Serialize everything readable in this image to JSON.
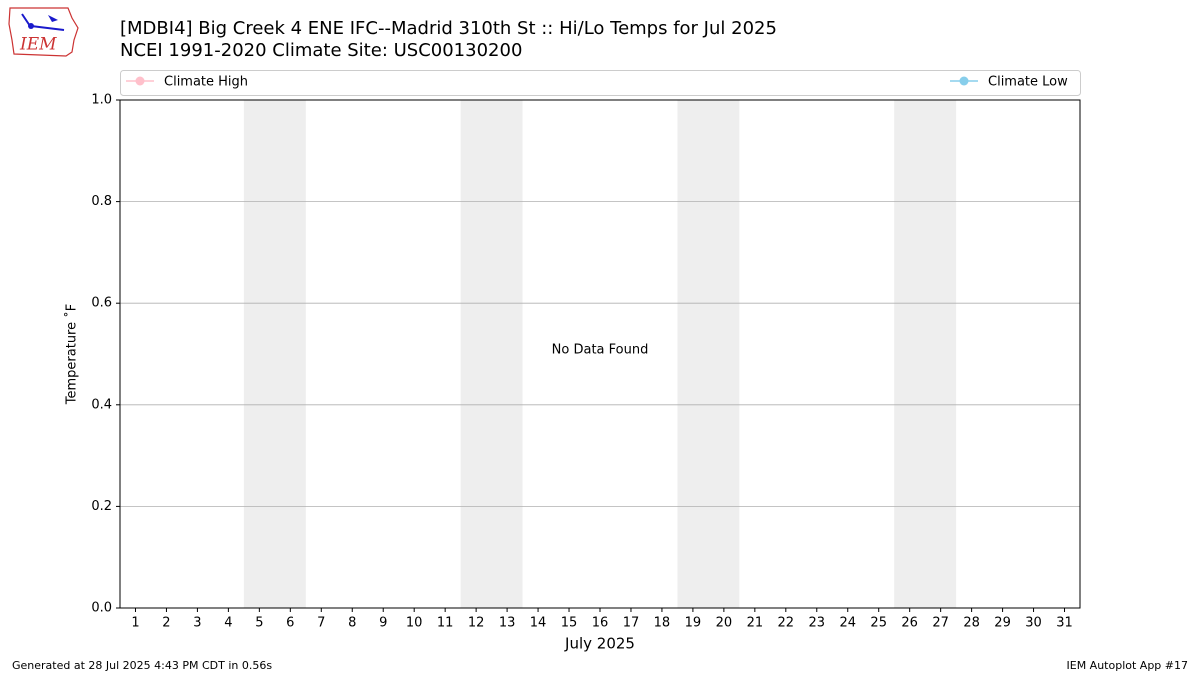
{
  "chart_data": {
    "type": "line",
    "title": "[MDBI4] Big Creek 4 ENE IFC--Madrid 310th St :: Hi/Lo Temps for Jul 2025",
    "subtitle": "NCEI 1991-2020 Climate Site: USC00130200",
    "logo": "IEM",
    "xlabel": "July 2025",
    "ylabel": "Temperature ˚F",
    "annotation": "No Data Found",
    "footer_left": "Generated at 28 Jul 2025 4:43 PM CDT in 0.56s",
    "footer_right": "IEM Autoplot App #17",
    "x": [
      1,
      2,
      3,
      4,
      5,
      6,
      7,
      8,
      9,
      10,
      11,
      12,
      13,
      14,
      15,
      16,
      17,
      18,
      19,
      20,
      21,
      22,
      23,
      24,
      25,
      26,
      27,
      28,
      29,
      30,
      31
    ],
    "series": [
      {
        "name": "Climate High",
        "color": "pink",
        "values": [
          null,
          null,
          null,
          null,
          null,
          null,
          null,
          null,
          null,
          null,
          null,
          null,
          null,
          null,
          null,
          null,
          null,
          null,
          null,
          null,
          null,
          null,
          null,
          null,
          null,
          null,
          null,
          null,
          null,
          null,
          null
        ]
      },
      {
        "name": "Climate Low",
        "color": "skyblue",
        "values": [
          null,
          null,
          null,
          null,
          null,
          null,
          null,
          null,
          null,
          null,
          null,
          null,
          null,
          null,
          null,
          null,
          null,
          null,
          null,
          null,
          null,
          null,
          null,
          null,
          null,
          null,
          null,
          null,
          null,
          null,
          null
        ]
      }
    ],
    "shaded_days": [
      [
        5,
        6
      ],
      [
        12,
        13
      ],
      [
        19,
        20
      ],
      [
        26,
        27
      ]
    ],
    "xlim": [
      0.5,
      31.5
    ],
    "xticks": [
      1,
      2,
      3,
      4,
      5,
      6,
      7,
      8,
      9,
      10,
      11,
      12,
      13,
      14,
      15,
      16,
      17,
      18,
      19,
      20,
      21,
      22,
      23,
      24,
      25,
      26,
      27,
      28,
      29,
      30,
      31
    ],
    "ylim": [
      0,
      1
    ],
    "yticks": [
      {
        "value": 0,
        "label": "0.0"
      },
      0.2,
      0.4,
      0.6,
      0.8,
      {
        "value": 1,
        "label": "1.0"
      }
    ],
    "grid": true,
    "legend": "top"
  }
}
